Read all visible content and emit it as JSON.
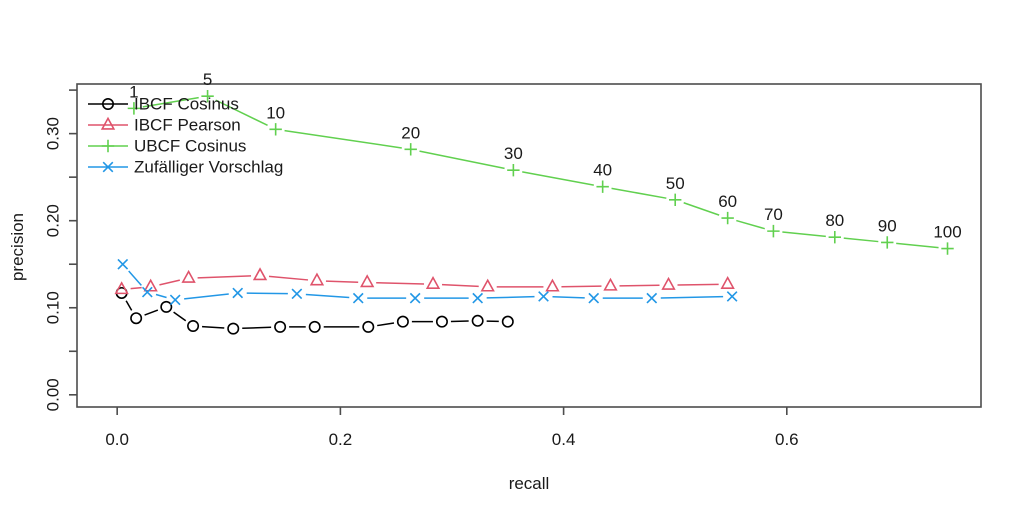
{
  "chart_data": {
    "type": "line",
    "title": "",
    "xlabel": "recall",
    "ylabel": "precision",
    "xlim": [
      -0.036,
      0.774
    ],
    "ylim": [
      -0.014,
      0.357
    ],
    "grid": false,
    "legend_position": "top-left",
    "background_color": "#ffffff",
    "axis_color": "#4d4d4d",
    "text_color": "#1a1a1a",
    "x_ticks": {
      "values": [
        0.0,
        0.2,
        0.4,
        0.6
      ],
      "labels": [
        "0.0",
        "0.2",
        "0.4",
        "0.6"
      ]
    },
    "y_ticks": {
      "values": [
        0.0,
        0.05,
        0.1,
        0.15,
        0.2,
        0.25,
        0.3,
        0.35
      ],
      "labels": [
        "0.00",
        "",
        "0.10",
        "",
        "0.20",
        "",
        "0.30",
        ""
      ]
    },
    "series": [
      {
        "name": "IBCF Cosinus",
        "color": "#000000",
        "marker": "circle",
        "points": [
          [
            0.004,
            0.117
          ],
          [
            0.017,
            0.088
          ],
          [
            0.044,
            0.101
          ],
          [
            0.068,
            0.079
          ],
          [
            0.104,
            0.076
          ],
          [
            0.146,
            0.078
          ],
          [
            0.177,
            0.078
          ],
          [
            0.225,
            0.078
          ],
          [
            0.256,
            0.084
          ],
          [
            0.291,
            0.084
          ],
          [
            0.323,
            0.085
          ],
          [
            0.35,
            0.084
          ]
        ]
      },
      {
        "name": "IBCF Pearson",
        "color": "#DF536B",
        "marker": "triangle",
        "points": [
          [
            0.004,
            0.121
          ],
          [
            0.03,
            0.124
          ],
          [
            0.064,
            0.134
          ],
          [
            0.128,
            0.137
          ],
          [
            0.179,
            0.131
          ],
          [
            0.224,
            0.129
          ],
          [
            0.283,
            0.127
          ],
          [
            0.332,
            0.124
          ],
          [
            0.39,
            0.124
          ],
          [
            0.442,
            0.125
          ],
          [
            0.494,
            0.126
          ],
          [
            0.547,
            0.127
          ]
        ]
      },
      {
        "name": "UBCF Cosinus",
        "color": "#61D04F",
        "marker": "plus",
        "points": [
          [
            0.015,
            0.329
          ],
          [
            0.081,
            0.343
          ],
          [
            0.142,
            0.305
          ],
          [
            0.263,
            0.282
          ],
          [
            0.355,
            0.258
          ],
          [
            0.435,
            0.239
          ],
          [
            0.5,
            0.224
          ],
          [
            0.547,
            0.203
          ],
          [
            0.588,
            0.188
          ],
          [
            0.643,
            0.181
          ],
          [
            0.69,
            0.175
          ],
          [
            0.744,
            0.168
          ]
        ],
        "point_labels": [
          "1",
          "5",
          "10",
          "20",
          "30",
          "40",
          "50",
          "60",
          "70",
          "80",
          "90",
          "100"
        ]
      },
      {
        "name": "Zufälliger Vorschlag",
        "color": "#2297E6",
        "marker": "x",
        "points": [
          [
            0.005,
            0.15
          ],
          [
            0.027,
            0.118
          ],
          [
            0.052,
            0.109
          ],
          [
            0.108,
            0.117
          ],
          [
            0.161,
            0.116
          ],
          [
            0.216,
            0.111
          ],
          [
            0.267,
            0.111
          ],
          [
            0.323,
            0.111
          ],
          [
            0.382,
            0.113
          ],
          [
            0.427,
            0.111
          ],
          [
            0.479,
            0.111
          ],
          [
            0.551,
            0.113
          ]
        ]
      }
    ]
  }
}
